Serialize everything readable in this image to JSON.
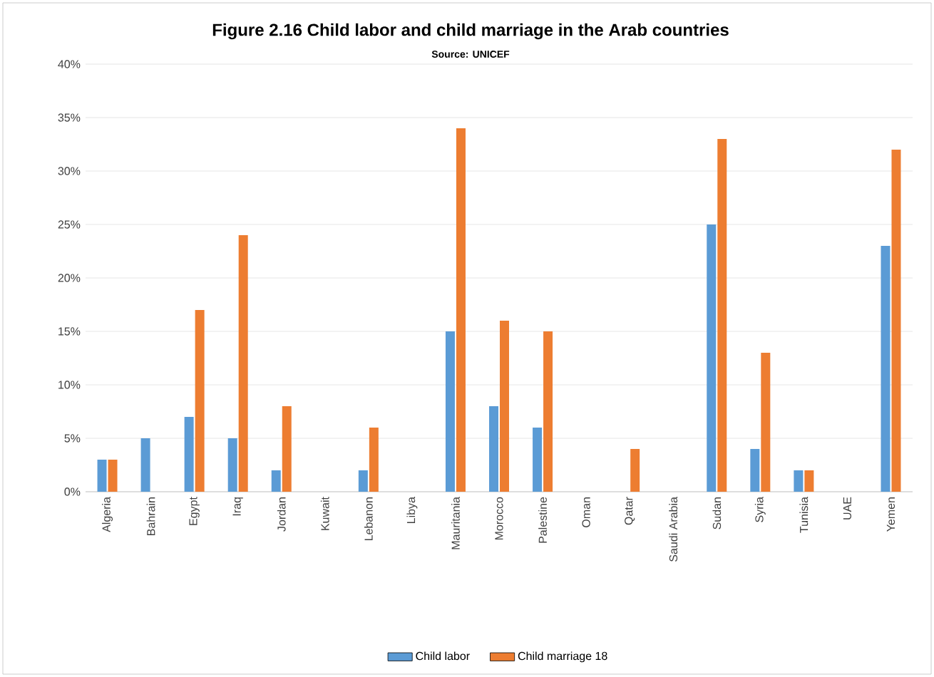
{
  "chart_data": {
    "type": "bar",
    "title": "Figure 2.16 Child labor and child marriage in the Arab countries",
    "subtitle": "Source: UNICEF",
    "categories": [
      "Algeria",
      "Bahrain",
      "Egypt",
      "Iraq",
      "Jordan",
      "Kuwait",
      "Lebanon",
      "Libya",
      "Mauritania",
      "Morocco",
      "Palestine",
      "Oman",
      "Qatar",
      "Saudi Arabia",
      "Sudan",
      "Syria",
      "Tunisia",
      "UAE",
      "Yemen"
    ],
    "series": [
      {
        "name": "Child labor",
        "color": "#5b9bd5",
        "values": [
          3,
          5,
          7,
          5,
          2,
          null,
          2,
          null,
          15,
          8,
          6,
          null,
          null,
          null,
          25,
          4,
          2,
          null,
          23
        ]
      },
      {
        "name": "Child marriage 18",
        "color": "#ed7d31",
        "values": [
          3,
          null,
          17,
          24,
          8,
          null,
          6,
          null,
          34,
          16,
          15,
          null,
          4,
          null,
          33,
          13,
          2,
          null,
          32
        ]
      }
    ],
    "ylim": [
      0,
      40
    ],
    "yticks": [
      {
        "value": 0,
        "label": "0%"
      },
      {
        "value": 5,
        "label": "5%"
      },
      {
        "value": 10,
        "label": "10%"
      },
      {
        "value": 15,
        "label": "15%"
      },
      {
        "value": 20,
        "label": "20%"
      },
      {
        "value": 25,
        "label": "25%"
      },
      {
        "value": 30,
        "label": "30%"
      },
      {
        "value": 35,
        "label": "35%"
      },
      {
        "value": 40,
        "label": "40%"
      }
    ],
    "grid": "y",
    "legend": "bottom"
  }
}
